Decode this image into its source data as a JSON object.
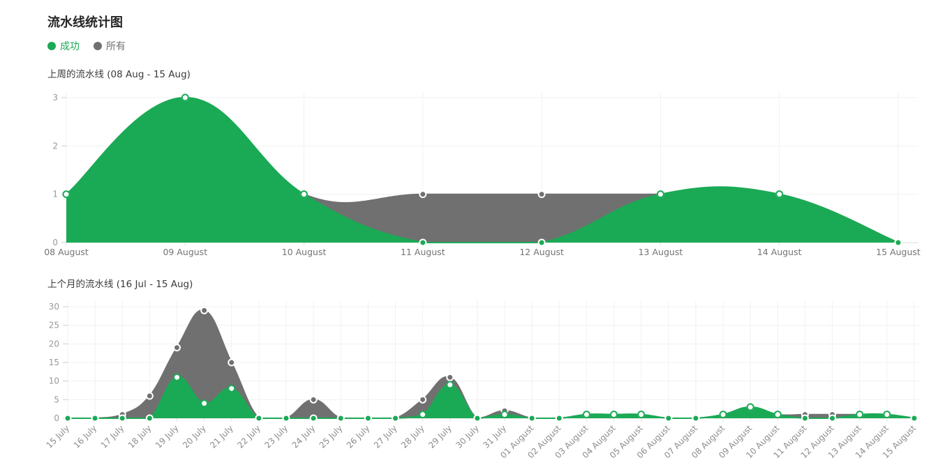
{
  "header": {
    "title": "流水线统计图"
  },
  "legend": [
    {
      "label": "成功",
      "color": "#1aaa55"
    },
    {
      "label": "所有",
      "color": "#707070"
    }
  ],
  "chart_data": [
    {
      "type": "area",
      "title": "上周的流水线 (08 Aug - 15 Aug)",
      "categories": [
        "08 August",
        "09 August",
        "10 August",
        "11 August",
        "12 August",
        "13 August",
        "14 August",
        "15 August"
      ],
      "series": [
        {
          "name": "所有",
          "color": "#707070",
          "values": [
            1,
            3,
            1,
            1,
            1,
            1,
            1,
            0
          ]
        },
        {
          "name": "成功",
          "color": "#1aaa55",
          "values": [
            1,
            3,
            1,
            0,
            0,
            1,
            1,
            0
          ]
        }
      ],
      "ylim": [
        0,
        3
      ],
      "yticks": [
        0,
        1,
        2,
        3
      ],
      "grid": true,
      "smooth": true,
      "legend_position": "top",
      "x_label_rotation": 0
    },
    {
      "type": "area",
      "title": "上个月的流水线 (16 Jul - 15 Aug)",
      "categories": [
        "15 July",
        "16 July",
        "17 July",
        "18 July",
        "19 July",
        "20 July",
        "21 July",
        "22 July",
        "23 July",
        "24 July",
        "25 July",
        "26 July",
        "27 July",
        "28 July",
        "29 July",
        "30 July",
        "31 July",
        "01 August",
        "02 August",
        "03 August",
        "04 August",
        "05 August",
        "06 August",
        "07 August",
        "08 August",
        "09 August",
        "10 August",
        "11 August",
        "12 August",
        "13 August",
        "14 August",
        "15 August"
      ],
      "series": [
        {
          "name": "所有",
          "color": "#707070",
          "values": [
            0,
            0,
            1,
            6,
            19,
            29,
            15,
            0,
            0,
            5,
            0,
            0,
            0,
            5,
            11,
            0,
            2,
            0,
            0,
            1,
            1,
            1,
            0,
            0,
            1,
            3,
            1,
            1,
            1,
            1,
            1,
            0
          ]
        },
        {
          "name": "成功",
          "color": "#1aaa55",
          "values": [
            0,
            0,
            0,
            0,
            11,
            4,
            8,
            0,
            0,
            0,
            0,
            0,
            0,
            1,
            9,
            0,
            1,
            0,
            0,
            1,
            1,
            1,
            0,
            0,
            1,
            3,
            1,
            0,
            0,
            1,
            1,
            0
          ]
        }
      ],
      "ylim": [
        0,
        30
      ],
      "yticks": [
        0,
        5,
        10,
        15,
        20,
        25,
        30
      ],
      "grid": true,
      "smooth": true,
      "legend_position": "top",
      "x_label_rotation": -45
    }
  ]
}
